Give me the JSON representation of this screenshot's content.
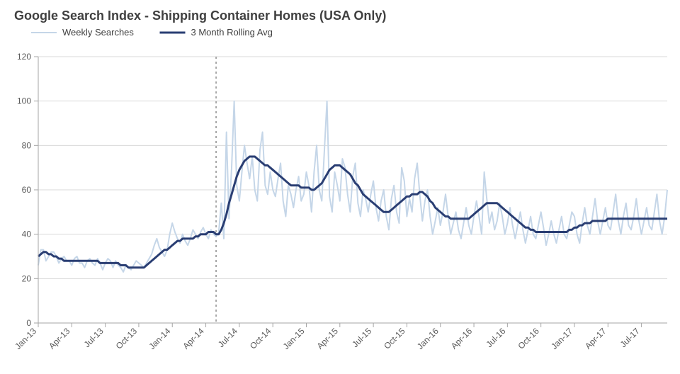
{
  "chart": {
    "type": "line",
    "title": "Google Search Index - Shipping Container Homes (USA Only)",
    "title_fontsize": 18,
    "title_fontweight": "bold",
    "title_color": "#404040",
    "legend": {
      "items": [
        {
          "label": "Weekly Searches",
          "color": "#c5d6e8",
          "line_width": 2.0
        },
        {
          "label": "3 Month Rolling Avg",
          "color": "#2a3e73",
          "line_width": 3.0
        }
      ],
      "fontsize": 13,
      "position": "top-left"
    },
    "background_color": "#ffffff",
    "axis_color": "#a6a6a6",
    "gridline_color": "#d9d9d9",
    "grid_dash_minor": "1 0",
    "x": {
      "domain_index": [
        0,
        244
      ],
      "ticks_index": [
        0,
        13,
        26,
        39,
        52,
        65,
        78,
        91,
        104,
        117,
        130,
        143,
        156,
        169,
        182,
        195,
        208,
        221,
        234
      ],
      "tick_labels": [
        "Jan-13",
        "Apr-13",
        "Jul-13",
        "Oct-13",
        "Jan-14",
        "Apr-14",
        "Jul-14",
        "Oct-14",
        "Jan-15",
        "Apr-15",
        "Jul-15",
        "Oct-15",
        "Jan-16",
        "Apr-16",
        "Jul-16",
        "Oct-16",
        "Jan-17",
        "Apr-17",
        "Jul-17"
      ],
      "label_fontsize": 12,
      "label_rotation_deg": -45
    },
    "y": {
      "lim": [
        0,
        120
      ],
      "ticks": [
        0,
        20,
        40,
        60,
        80,
        100,
        120
      ],
      "label_fontsize": 12
    },
    "vertical_reference_line": {
      "x_index": 69,
      "color": "#a6a6a6",
      "dash": "3 4",
      "width": 2.0
    },
    "series": {
      "weekly": [
        26,
        33,
        33,
        28,
        30,
        32,
        32,
        30,
        27,
        29,
        30,
        28,
        28,
        26,
        29,
        30,
        27,
        27,
        25,
        28,
        29,
        27,
        26,
        29,
        27,
        24,
        27,
        29,
        28,
        25,
        28,
        26,
        25,
        23,
        26,
        25,
        24,
        26,
        28,
        27,
        26,
        25,
        27,
        29,
        31,
        35,
        38,
        34,
        32,
        30,
        33,
        40,
        45,
        41,
        38,
        36,
        40,
        37,
        35,
        38,
        42,
        40,
        38,
        41,
        43,
        40,
        38,
        42,
        40,
        39,
        41,
        54,
        38,
        86,
        47,
        70,
        100,
        62,
        55,
        68,
        80,
        72,
        65,
        75,
        60,
        55,
        78,
        86,
        62,
        58,
        68,
        60,
        57,
        65,
        72,
        55,
        48,
        62,
        58,
        52,
        60,
        66,
        55,
        58,
        68,
        62,
        50,
        68,
        80,
        60,
        55,
        78,
        100,
        57,
        50,
        68,
        62,
        55,
        74,
        70,
        58,
        50,
        66,
        72,
        54,
        48,
        60,
        56,
        50,
        58,
        64,
        52,
        46,
        55,
        60,
        48,
        42,
        56,
        62,
        50,
        45,
        70,
        64,
        48,
        56,
        50,
        65,
        72,
        58,
        46,
        55,
        60,
        48,
        40,
        46,
        52,
        44,
        50,
        58,
        48,
        40,
        45,
        50,
        42,
        38,
        45,
        52,
        44,
        40,
        48,
        55,
        48,
        40,
        68,
        56,
        45,
        50,
        42,
        46,
        54,
        48,
        40,
        45,
        52,
        44,
        38,
        44,
        50,
        42,
        36,
        42,
        48,
        40,
        38,
        44,
        50,
        43,
        35,
        40,
        46,
        40,
        36,
        42,
        48,
        40,
        38,
        44,
        50,
        48,
        40,
        36,
        45,
        52,
        44,
        40,
        48,
        56,
        46,
        40,
        46,
        52,
        44,
        42,
        50,
        58,
        46,
        40,
        48,
        54,
        44,
        42,
        48,
        56,
        46,
        40,
        46,
        52,
        44,
        42,
        50,
        58,
        46,
        40,
        48,
        60
      ],
      "rolling3m": [
        30,
        31,
        32,
        32,
        31,
        31,
        30,
        30,
        29,
        29,
        28,
        28,
        28,
        28,
        28,
        28,
        28,
        28,
        28,
        28,
        28,
        28,
        28,
        28,
        27,
        27,
        27,
        27,
        27,
        27,
        27,
        27,
        26,
        26,
        26,
        25,
        25,
        25,
        25,
        25,
        25,
        25,
        26,
        27,
        28,
        29,
        30,
        31,
        32,
        33,
        33,
        34,
        35,
        36,
        37,
        37,
        38,
        38,
        38,
        38,
        38,
        39,
        39,
        40,
        40,
        40,
        41,
        41,
        41,
        40,
        40,
        42,
        45,
        49,
        54,
        58,
        62,
        66,
        69,
        71,
        73,
        74,
        75,
        75,
        75,
        74,
        73,
        72,
        71,
        71,
        70,
        69,
        68,
        67,
        66,
        65,
        64,
        63,
        62,
        62,
        62,
        62,
        61,
        61,
        61,
        61,
        60,
        60,
        61,
        62,
        63,
        65,
        67,
        69,
        70,
        71,
        71,
        71,
        70,
        69,
        68,
        67,
        65,
        63,
        62,
        60,
        58,
        57,
        56,
        55,
        54,
        53,
        52,
        51,
        50,
        50,
        50,
        51,
        52,
        53,
        54,
        55,
        56,
        57,
        57,
        58,
        58,
        58,
        59,
        59,
        58,
        57,
        55,
        54,
        52,
        51,
        50,
        49,
        48,
        48,
        47,
        47,
        47,
        47,
        47,
        47,
        47,
        47,
        48,
        49,
        50,
        51,
        52,
        53,
        54,
        54,
        54,
        54,
        54,
        53,
        52,
        51,
        50,
        49,
        48,
        47,
        46,
        45,
        44,
        43,
        43,
        42,
        42,
        41,
        41,
        41,
        41,
        41,
        41,
        41,
        41,
        41,
        41,
        41,
        41,
        41,
        42,
        42,
        43,
        43,
        44,
        44,
        45,
        45,
        45,
        46,
        46,
        46,
        46,
        46,
        46,
        47,
        47,
        47,
        47,
        47,
        47,
        47,
        47,
        47,
        47,
        47,
        47,
        47,
        47,
        47,
        47,
        47,
        47,
        47,
        47,
        47,
        47,
        47,
        47
      ]
    }
  }
}
